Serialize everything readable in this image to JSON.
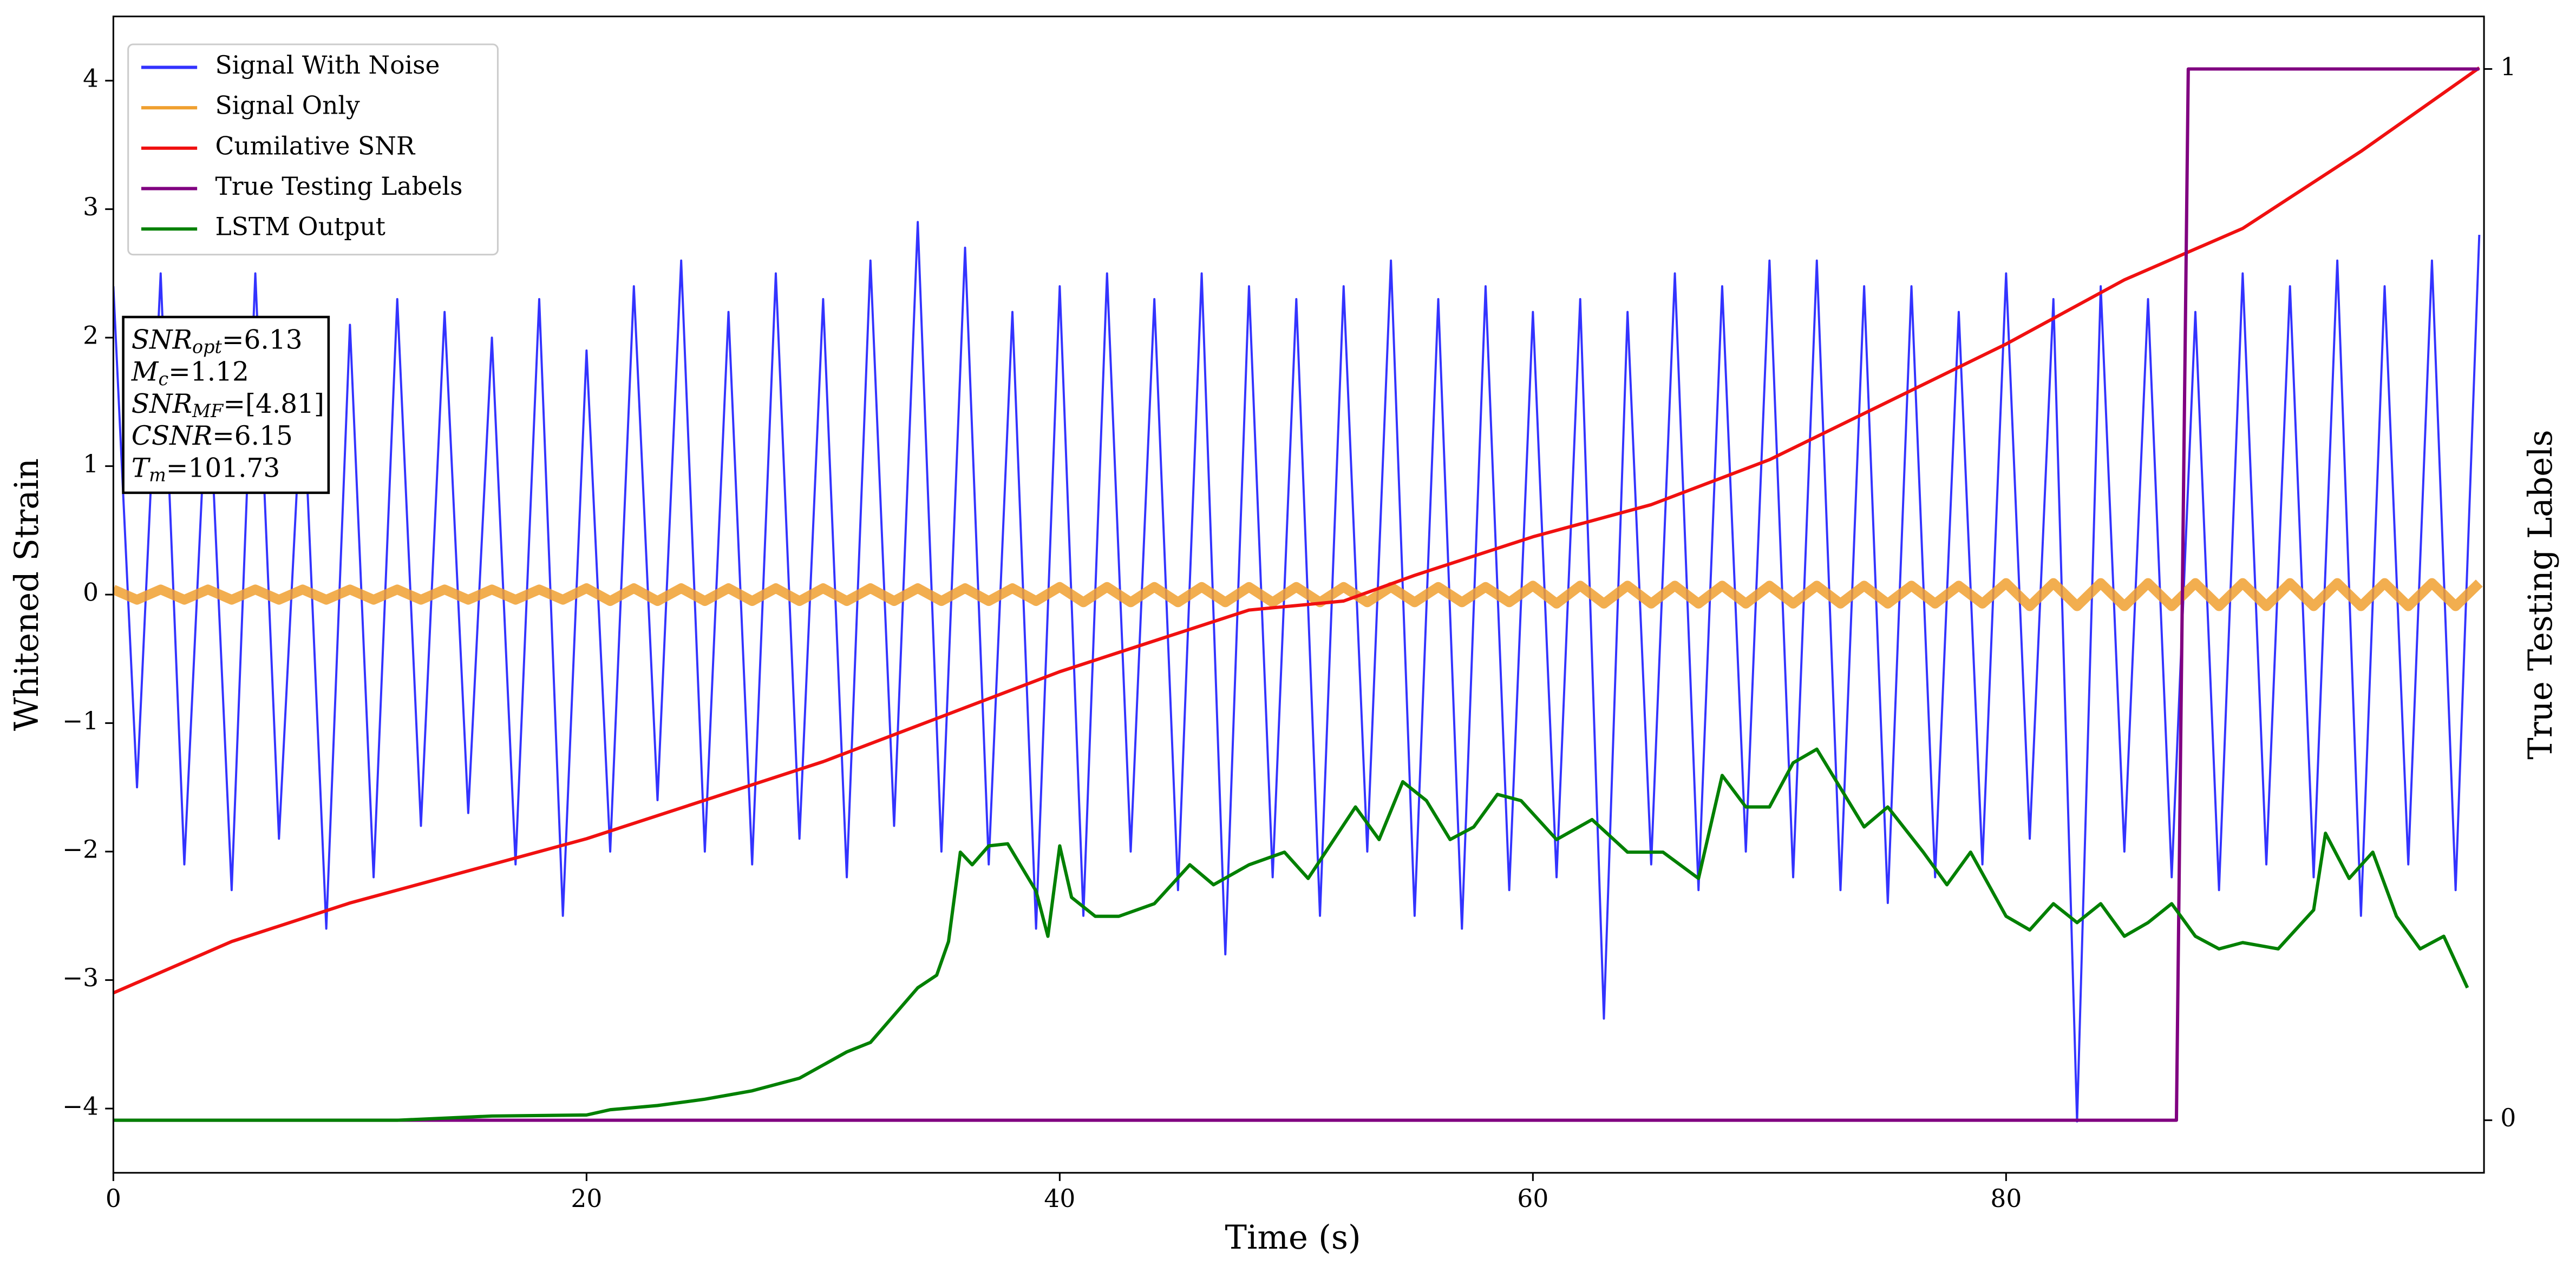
{
  "chart_data": {
    "type": "line",
    "xlabel": "Time (s)",
    "ylabel": "Whitened Strain",
    "y2label": "True Testing Labels",
    "xlim": [
      0,
      100.2
    ],
    "xticks": [
      0,
      20,
      40,
      60,
      80
    ],
    "ylim": [
      -4.5,
      4.5
    ],
    "yticks": [
      {
        "value": -4,
        "label": "−4"
      },
      {
        "value": -3,
        "label": "−3"
      },
      {
        "value": -2,
        "label": "−2"
      },
      {
        "value": -1,
        "label": "−1"
      },
      0,
      1,
      2,
      3,
      4
    ],
    "y2lim": [
      -0.05,
      1.05
    ],
    "y2ticks": [
      0,
      1
    ],
    "legend": "upper left",
    "x": [
      0,
      1,
      2,
      3,
      4,
      5,
      6,
      7,
      8,
      9,
      10,
      11,
      12,
      13,
      14,
      15,
      16,
      17,
      18,
      19,
      20,
      21,
      22,
      23,
      24,
      25,
      26,
      27,
      28,
      29,
      30,
      31,
      32,
      33,
      34,
      35,
      36,
      37,
      38,
      39,
      40,
      41,
      42,
      43,
      44,
      45,
      46,
      47,
      48,
      49,
      50,
      51,
      52,
      53,
      54,
      55,
      56,
      57,
      58,
      59,
      60,
      61,
      62,
      63,
      64,
      65,
      66,
      67,
      68,
      69,
      70,
      71,
      72,
      73,
      74,
      75,
      76,
      77,
      78,
      79,
      80,
      81,
      82,
      83,
      84,
      85,
      86,
      87,
      88,
      89,
      90,
      91,
      92,
      93,
      94,
      95,
      96,
      97,
      98,
      99,
      100
    ],
    "series": [
      {
        "name": "Signal With Noise",
        "color": "#3333ff",
        "values": [
          2.4,
          -1.5,
          2.5,
          -2.1,
          1.8,
          -2.3,
          2.5,
          -1.9,
          1.7,
          -2.6,
          2.1,
          -2.2,
          2.3,
          -1.8,
          2.2,
          -1.7,
          2.0,
          -2.1,
          2.3,
          -2.5,
          1.9,
          -2.0,
          2.4,
          -1.6,
          2.6,
          -2.0,
          2.2,
          -2.1,
          2.5,
          -1.9,
          2.3,
          -2.2,
          2.6,
          -1.8,
          2.9,
          -2.0,
          2.7,
          -2.1,
          2.2,
          -2.6,
          2.4,
          -2.5,
          2.5,
          -2.0,
          2.3,
          -2.3,
          2.5,
          -2.8,
          2.4,
          -2.2,
          2.3,
          -2.5,
          2.4,
          -2.0,
          2.6,
          -2.5,
          2.3,
          -2.6,
          2.4,
          -2.3,
          2.2,
          -2.2,
          2.3,
          -3.3,
          2.2,
          -2.1,
          2.5,
          -2.3,
          2.4,
          -2.0,
          2.6,
          -2.2,
          2.6,
          -2.3,
          2.4,
          -2.4,
          2.4,
          -2.2,
          2.2,
          -2.1,
          2.5,
          -1.9,
          2.3,
          -4.1,
          2.4,
          -2.0,
          2.3,
          -2.2,
          2.2,
          -2.3,
          2.5,
          -2.1,
          2.4,
          -2.2,
          2.6,
          -2.5,
          2.4,
          -2.1,
          2.6,
          -2.3,
          2.8
        ]
      },
      {
        "name": "Signal Only",
        "color": "#f0a030",
        "values": [
          0.04,
          -0.04,
          0.04,
          -0.04,
          0.04,
          -0.04,
          0.04,
          -0.04,
          0.04,
          -0.04,
          0.04,
          -0.04,
          0.04,
          -0.04,
          0.04,
          -0.04,
          0.04,
          -0.04,
          0.04,
          -0.04,
          0.05,
          -0.05,
          0.05,
          -0.05,
          0.05,
          -0.05,
          0.05,
          -0.05,
          0.05,
          -0.05,
          0.05,
          -0.05,
          0.05,
          -0.05,
          0.05,
          -0.05,
          0.05,
          -0.05,
          0.05,
          -0.05,
          0.06,
          -0.06,
          0.06,
          -0.06,
          0.06,
          -0.06,
          0.06,
          -0.06,
          0.06,
          -0.06,
          0.06,
          -0.06,
          0.06,
          -0.06,
          0.06,
          -0.06,
          0.06,
          -0.06,
          0.06,
          -0.06,
          0.07,
          -0.07,
          0.07,
          -0.07,
          0.07,
          -0.07,
          0.07,
          -0.07,
          0.07,
          -0.07,
          0.07,
          -0.07,
          0.07,
          -0.07,
          0.07,
          -0.07,
          0.07,
          -0.07,
          0.07,
          -0.07,
          0.09,
          -0.09,
          0.09,
          -0.09,
          0.09,
          -0.09,
          0.09,
          -0.09,
          0.09,
          -0.09,
          0.09,
          -0.09,
          0.09,
          -0.09,
          0.09,
          -0.09,
          0.09,
          -0.09,
          0.09,
          -0.09,
          0.09
        ]
      },
      {
        "name": "Cumilative SNR",
        "color": "#f01010",
        "x": [
          0,
          5,
          10,
          15,
          20,
          25,
          30,
          35,
          40,
          45,
          48,
          52,
          55,
          60,
          65,
          70,
          75,
          80,
          85,
          90,
          95,
          100
        ],
        "values": [
          -3.1,
          -2.7,
          -2.4,
          -2.15,
          -1.9,
          -1.6,
          -1.3,
          -0.95,
          -0.6,
          -0.3,
          -0.12,
          -0.05,
          0.15,
          0.45,
          0.7,
          1.05,
          1.5,
          1.95,
          2.45,
          2.85,
          3.45,
          4.1
        ]
      },
      {
        "name": "True Testing Labels",
        "color": "#800080",
        "axis": "y2",
        "x": [
          0,
          87.2,
          87.7,
          100
        ],
        "values": [
          0,
          0,
          1,
          1
        ]
      },
      {
        "name": "LSTM Output",
        "color": "#008000",
        "axis": "y2",
        "x": [
          0,
          12,
          16,
          20,
          21,
          23,
          25,
          27,
          29,
          31,
          32,
          33,
          34,
          34.8,
          35.3,
          35.8,
          36.3,
          37,
          37.8,
          39,
          39.5,
          40,
          40.5,
          41.5,
          42.5,
          44,
          45.5,
          46.5,
          48,
          49.5,
          50.5,
          52.5,
          53.5,
          54.5,
          55.5,
          56.5,
          57.5,
          58.5,
          59.5,
          61,
          62.5,
          64,
          65.5,
          67,
          68,
          69,
          70,
          71,
          72,
          73,
          74,
          75,
          76.5,
          77.5,
          78.5,
          80,
          81,
          82,
          83,
          84,
          85,
          86,
          87,
          88,
          89,
          90,
          91.5,
          93,
          93.5,
          94.5,
          95.5,
          96.5,
          97.5,
          98.5,
          99.5
        ],
        "values": [
          0,
          0,
          0.004,
          0.005,
          0.01,
          0.014,
          0.02,
          0.028,
          0.04,
          0.065,
          0.074,
          0.1,
          0.126,
          0.138,
          0.17,
          0.255,
          0.243,
          0.261,
          0.263,
          0.218,
          0.175,
          0.261,
          0.212,
          0.194,
          0.194,
          0.206,
          0.243,
          0.224,
          0.243,
          0.255,
          0.23,
          0.298,
          0.267,
          0.322,
          0.304,
          0.267,
          0.279,
          0.31,
          0.304,
          0.267,
          0.286,
          0.255,
          0.255,
          0.23,
          0.328,
          0.298,
          0.298,
          0.34,
          0.353,
          0.316,
          0.279,
          0.298,
          0.255,
          0.224,
          0.255,
          0.194,
          0.181,
          0.206,
          0.188,
          0.206,
          0.175,
          0.188,
          0.206,
          0.175,
          0.163,
          0.169,
          0.163,
          0.2,
          0.273,
          0.23,
          0.255,
          0.194,
          0.163,
          0.175,
          0.126
        ]
      }
    ],
    "annotations": [
      {
        "text": "SNR",
        "sub": "opt",
        "value": "=6.13"
      },
      {
        "text": "M",
        "sub": "c",
        "value": "=1.12"
      },
      {
        "text": "SNR",
        "sub": "MF",
        "value": "=[4.81]"
      },
      {
        "text": "CSNR",
        "value": "=6.15"
      },
      {
        "text": "T",
        "sub": "m",
        "value": "=101.73"
      }
    ]
  }
}
